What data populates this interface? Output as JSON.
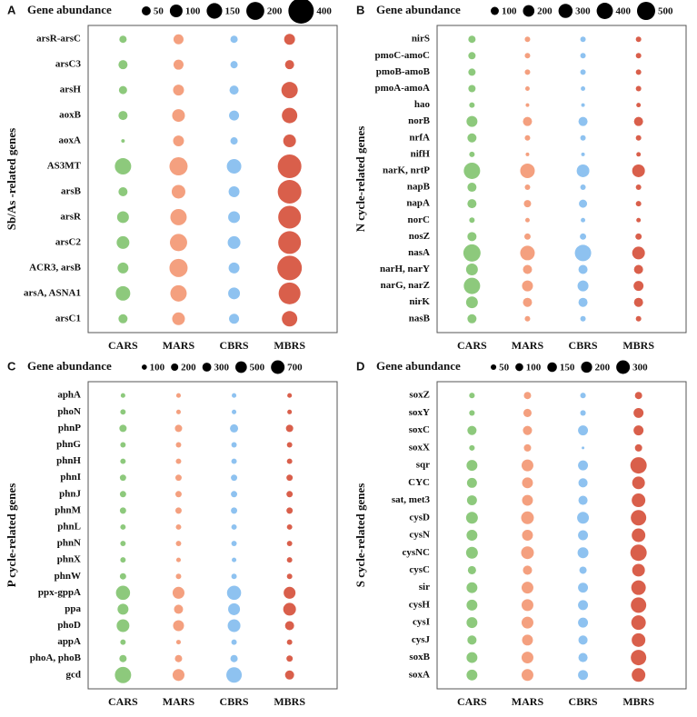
{
  "chart_data": [
    {
      "type": "bubble",
      "panel": "A",
      "ylabel": "Sb/As -related genes",
      "size_legend_title": "Gene abundance",
      "size_legend": [
        50,
        100,
        150,
        200,
        400
      ],
      "categories": [
        "arsR-arsC",
        "arsC3",
        "arsH",
        "aoxB",
        "aoxA",
        "AS3MT",
        "arsB",
        "arsR",
        "arsC2",
        "ACR3, arsB",
        "arsA, ASNA1",
        "arsC1"
      ],
      "series": [
        {
          "name": "CARS",
          "color": "#8dc97c",
          "values": [
            33,
            51,
            41,
            51,
            8,
            165,
            51,
            86,
            100,
            73,
            130,
            51
          ]
        },
        {
          "name": "MARS",
          "color": "#f4a07f",
          "values": [
            62,
            62,
            73,
            100,
            73,
            204,
            115,
            165,
            184,
            204,
            165,
            100
          ]
        },
        {
          "name": "CBRS",
          "color": "#8ec2f0",
          "values": [
            33,
            33,
            51,
            62,
            33,
            130,
            73,
            86,
            100,
            73,
            86,
            62
          ]
        },
        {
          "name": "MBRS",
          "color": "#d95f4b",
          "values": [
            73,
            51,
            165,
            147,
            100,
            345,
            345,
            319,
            319,
            372,
            294,
            147
          ]
        }
      ]
    },
    {
      "type": "bubble",
      "panel": "B",
      "ylabel": "N cycle-related genes",
      "size_legend_title": "Gene abundance",
      "size_legend": [
        100,
        200,
        300,
        400,
        500
      ],
      "categories": [
        "nirS",
        "pmoC-amoC",
        "pmoB-amoB",
        "pmoA-amoA",
        "hao",
        "norB",
        "nrfA",
        "nifH",
        "narK, nrtP",
        "napB",
        "napA",
        "norC",
        "nosZ",
        "nasA",
        "narH, narY",
        "narG, narZ",
        "nirK",
        "nasB"
      ],
      "series": [
        {
          "name": "CARS",
          "color": "#8dc97c",
          "values": [
            80,
            80,
            80,
            80,
            45,
            180,
            125,
            45,
            405,
            125,
            125,
            45,
            125,
            450,
            210,
            405,
            210,
            125
          ]
        },
        {
          "name": "MARS",
          "color": "#f4a07f",
          "values": [
            45,
            45,
            45,
            30,
            20,
            125,
            45,
            20,
            320,
            45,
            80,
            30,
            60,
            320,
            125,
            180,
            125,
            45
          ]
        },
        {
          "name": "CBRS",
          "color": "#8ec2f0",
          "values": [
            45,
            45,
            45,
            30,
            20,
            125,
            45,
            20,
            245,
            45,
            100,
            30,
            60,
            405,
            125,
            180,
            125,
            45
          ]
        },
        {
          "name": "MBRS",
          "color": "#d95f4b",
          "values": [
            45,
            45,
            45,
            45,
            30,
            125,
            45,
            30,
            245,
            45,
            45,
            30,
            60,
            245,
            125,
            150,
            125,
            45
          ]
        }
      ]
    },
    {
      "type": "bubble",
      "panel": "C",
      "ylabel": "P cycle-related genes",
      "size_legend_title": "Gene abundance",
      "size_legend": [
        100,
        200,
        300,
        500,
        700
      ],
      "categories": [
        "aphA",
        "phoN",
        "phnP",
        "phnG",
        "phnH",
        "phnI",
        "phnJ",
        "phnM",
        "phnL",
        "phnN",
        "phnX",
        "phnW",
        "ppx-gppA",
        "ppa",
        "phoD",
        "appA",
        "phoA, phoB",
        "gcd"
      ],
      "series": [
        {
          "name": "CARS",
          "color": "#8dc97c",
          "values": [
            80,
            110,
            200,
            110,
            110,
            150,
            150,
            150,
            110,
            110,
            110,
            150,
            750,
            450,
            610,
            110,
            200,
            1000
          ]
        },
        {
          "name": "MARS",
          "color": "#f4a07f",
          "values": [
            80,
            80,
            200,
            110,
            110,
            150,
            150,
            150,
            110,
            110,
            80,
            110,
            530,
            310,
            450,
            80,
            200,
            530
          ]
        },
        {
          "name": "CBRS",
          "color": "#8ec2f0",
          "values": [
            80,
            80,
            250,
            110,
            110,
            150,
            150,
            150,
            110,
            110,
            80,
            110,
            750,
            530,
            610,
            110,
            200,
            900
          ]
        },
        {
          "name": "MBRS",
          "color": "#d95f4b",
          "values": [
            80,
            80,
            200,
            110,
            110,
            150,
            150,
            150,
            110,
            110,
            110,
            110,
            530,
            610,
            310,
            110,
            150,
            310
          ]
        }
      ]
    },
    {
      "type": "bubble",
      "panel": "D",
      "ylabel": "S cycle-related genes",
      "size_legend_title": "Gene abundance",
      "size_legend": [
        50,
        100,
        150,
        200,
        300
      ],
      "categories": [
        "soxZ",
        "soxY",
        "soxC",
        "soxX",
        "sqr",
        "CYC",
        "sat, met3",
        "cysD",
        "cysN",
        "cysNC",
        "cysC",
        "sir",
        "cysH",
        "cysI",
        "cysJ",
        "soxB",
        "soxA"
      ],
      "series": [
        {
          "name": "CARS",
          "color": "#8dc97c",
          "values": [
            50,
            50,
            135,
            50,
            190,
            160,
            160,
            225,
            190,
            225,
            110,
            190,
            190,
            190,
            135,
            190,
            190
          ]
        },
        {
          "name": "MARS",
          "color": "#f4a07f",
          "values": [
            85,
            110,
            135,
            85,
            225,
            190,
            190,
            260,
            190,
            260,
            135,
            225,
            225,
            225,
            190,
            225,
            225
          ]
        },
        {
          "name": "CBRS",
          "color": "#8ec2f0",
          "values": [
            50,
            50,
            160,
            12,
            160,
            135,
            135,
            225,
            160,
            190,
            85,
            160,
            160,
            160,
            135,
            135,
            160
          ]
        },
        {
          "name": "MBRS",
          "color": "#d95f4b",
          "values": [
            85,
            160,
            160,
            85,
            430,
            260,
            300,
            385,
            300,
            430,
            260,
            340,
            385,
            340,
            300,
            385,
            300
          ]
        }
      ]
    }
  ]
}
